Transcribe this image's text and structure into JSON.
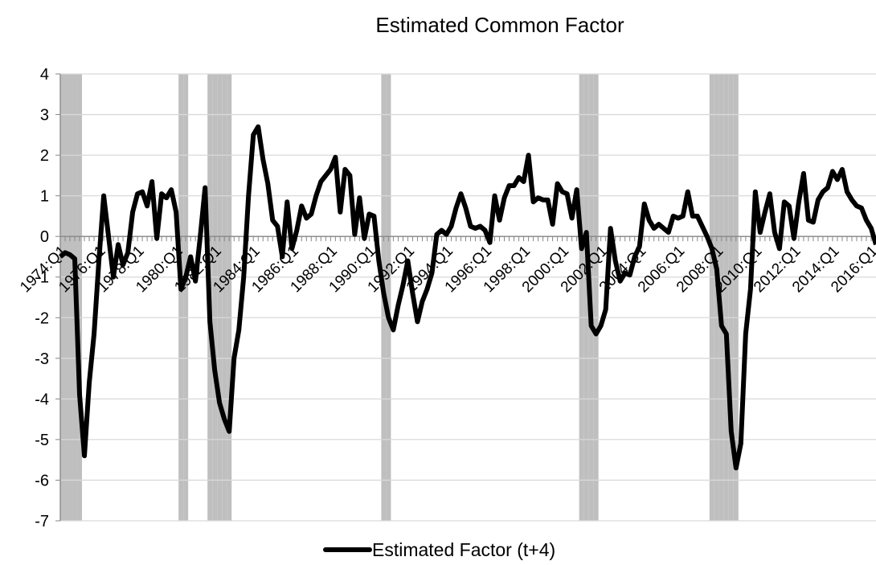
{
  "chart_data": {
    "type": "line",
    "title": "Estimated Common Factor",
    "categories": [
      "1974:Q1",
      null,
      null,
      null,
      null,
      null,
      null,
      null,
      "1976:Q1",
      null,
      null,
      null,
      null,
      null,
      null,
      null,
      "1978:Q1",
      null,
      null,
      null,
      null,
      null,
      null,
      null,
      "1980:Q1",
      null,
      null,
      null,
      null,
      null,
      null,
      null,
      "1982:Q1",
      null,
      null,
      null,
      null,
      null,
      null,
      null,
      "1984:Q1",
      null,
      null,
      null,
      null,
      null,
      null,
      null,
      "1986:Q1",
      null,
      null,
      null,
      null,
      null,
      null,
      null,
      "1988:Q1",
      null,
      null,
      null,
      null,
      null,
      null,
      null,
      "1990:Q1",
      null,
      null,
      null,
      null,
      null,
      null,
      null,
      "1992:Q1",
      null,
      null,
      null,
      null,
      null,
      null,
      null,
      "1994:Q1",
      null,
      null,
      null,
      null,
      null,
      null,
      null,
      "1996:Q1",
      null,
      null,
      null,
      null,
      null,
      null,
      null,
      "1998:Q1",
      null,
      null,
      null,
      null,
      null,
      null,
      null,
      "2000:Q1",
      null,
      null,
      null,
      null,
      null,
      null,
      null,
      "2002:Q1",
      null,
      null,
      null,
      null,
      null,
      null,
      null,
      "2004:Q1",
      null,
      null,
      null,
      null,
      null,
      null,
      null,
      "2006:Q1",
      null,
      null,
      null,
      null,
      null,
      null,
      null,
      "2008:Q1",
      null,
      null,
      null,
      null,
      null,
      null,
      null,
      "2010:Q1",
      null,
      null,
      null,
      null,
      null,
      null,
      null,
      "2012:Q1",
      null,
      null,
      null,
      null,
      null,
      null,
      null,
      "2014:Q1",
      null,
      null,
      null,
      null,
      null,
      null,
      null,
      "2016:Q1",
      null
    ],
    "series": [
      {
        "name": "Estimated Factor (t+4)",
        "color": "#000000",
        "values": [
          -0.5,
          -0.4,
          -0.45,
          -0.55,
          -3.9,
          -5.4,
          -3.6,
          -2.4,
          -0.6,
          1.0,
          0,
          -1.0,
          -0.2,
          -0.7,
          -0.4,
          0.6,
          1.05,
          1.1,
          0.75,
          1.35,
          -0.05,
          1.05,
          0.95,
          1.15,
          0.6,
          -1.3,
          -1.0,
          -0.5,
          -1.1,
          0.0,
          1.2,
          -2.1,
          -3.3,
          -4.1,
          -4.5,
          -4.8,
          -3.0,
          -2.3,
          -1.0,
          1.0,
          2.5,
          2.7,
          1.9,
          1.3,
          0.4,
          0.25,
          -0.5,
          0.85,
          -0.3,
          0.15,
          0.75,
          0.45,
          0.55,
          1.0,
          1.35,
          1.5,
          1.65,
          1.95,
          0.6,
          1.65,
          1.5,
          0.05,
          0.95,
          -0.05,
          0.55,
          0.5,
          -0.6,
          -1.4,
          -2.0,
          -2.3,
          -1.7,
          -1.2,
          -0.6,
          -1.4,
          -2.1,
          -1.6,
          -1.3,
          -0.9,
          0.05,
          0.15,
          0.05,
          0.25,
          0.7,
          1.05,
          0.7,
          0.25,
          0.2,
          0.25,
          0.15,
          -0.15,
          1.0,
          0.4,
          0.95,
          1.25,
          1.25,
          1.45,
          1.35,
          2.0,
          0.85,
          0.95,
          0.9,
          0.9,
          0.3,
          1.3,
          1.1,
          1.05,
          0.45,
          1.15,
          -0.3,
          0.1,
          -2.2,
          -2.4,
          -2.2,
          -1.8,
          0.2,
          -0.6,
          -1.1,
          -0.9,
          -0.95,
          -0.5,
          -0.25,
          0.8,
          0.4,
          0.2,
          0.3,
          0.2,
          0.1,
          0.5,
          0.45,
          0.5,
          1.1,
          0.5,
          0.5,
          0.25,
          0.0,
          -0.3,
          -0.8,
          -2.2,
          -2.4,
          -4.8,
          -5.7,
          -5.1,
          -2.4,
          -1.3,
          1.1,
          0.1,
          0.6,
          1.05,
          0.1,
          -0.3,
          0.85,
          0.75,
          -0.05,
          0.85,
          1.55,
          0.4,
          0.35,
          0.9,
          1.1,
          1.2,
          1.6,
          1.4,
          1.65,
          1.1,
          0.9,
          0.75,
          0.7,
          0.4,
          0.2,
          -0.2
        ]
      }
    ],
    "recession": {
      "color": "#bfbfbf",
      "values": [
        1,
        1,
        1,
        1,
        1,
        0,
        0,
        0,
        0,
        0,
        0,
        0,
        0,
        0,
        0,
        0,
        0,
        0,
        0,
        0,
        0,
        0,
        0,
        0,
        0,
        1,
        1,
        0,
        0,
        0,
        0,
        1,
        1,
        1,
        1,
        1,
        0,
        0,
        0,
        0,
        0,
        0,
        0,
        0,
        0,
        0,
        0,
        0,
        0,
        0,
        0,
        0,
        0,
        0,
        0,
        0,
        0,
        0,
        0,
        0,
        0,
        0,
        0,
        0,
        0,
        0,
        0,
        1,
        1,
        0,
        0,
        0,
        0,
        0,
        0,
        0,
        0,
        0,
        0,
        0,
        0,
        0,
        0,
        0,
        0,
        0,
        0,
        0,
        0,
        0,
        0,
        0,
        0,
        0,
        0,
        0,
        0,
        0,
        0,
        0,
        0,
        0,
        0,
        0,
        0,
        0,
        0,
        0,
        1,
        1,
        1,
        1,
        0,
        0,
        0,
        0,
        0,
        0,
        0,
        0,
        0,
        0,
        0,
        0,
        0,
        0,
        0,
        0,
        0,
        0,
        0,
        0,
        0,
        0,
        0,
        1,
        1,
        1,
        1,
        1,
        1,
        0,
        0,
        0,
        0,
        0,
        0,
        0,
        0,
        0,
        0,
        0,
        0,
        0,
        0,
        0,
        0,
        0,
        0,
        0,
        0,
        0,
        0,
        0,
        0,
        0,
        0,
        0,
        0,
        0
      ]
    },
    "ylim": [
      -7,
      4
    ],
    "yticks": [
      -7,
      -6,
      -5,
      -4,
      -3,
      -2,
      -1,
      0,
      1,
      2,
      3,
      4
    ],
    "grid": true,
    "legend": "bottom"
  }
}
